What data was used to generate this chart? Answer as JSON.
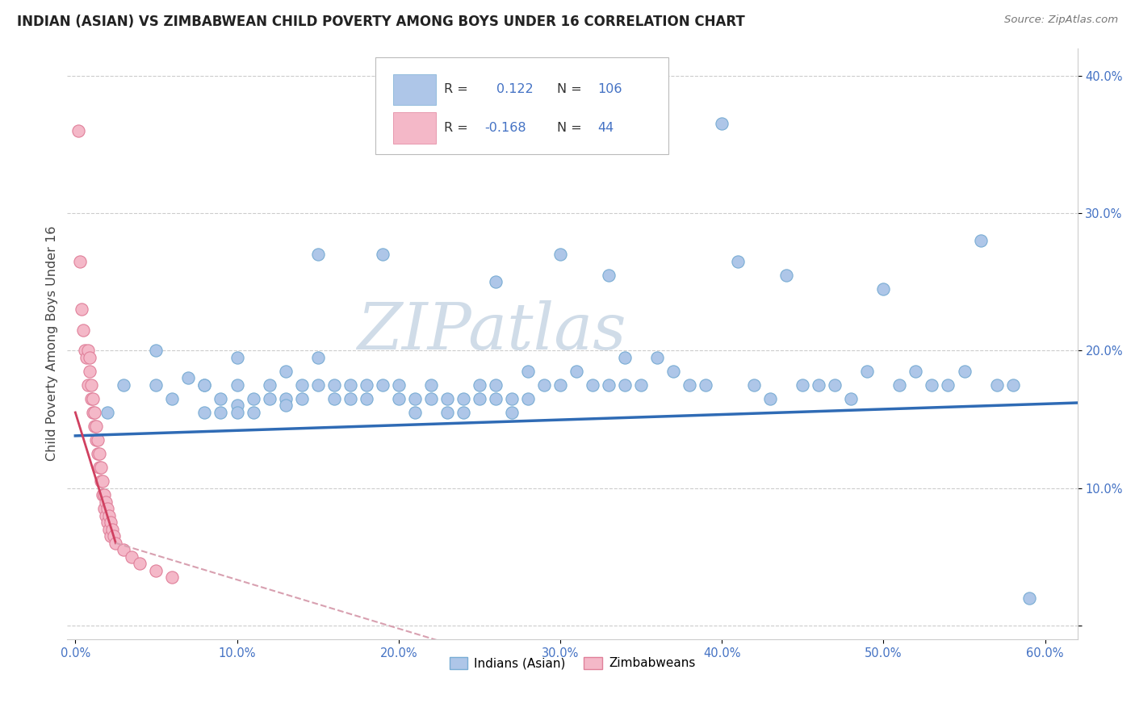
{
  "title": "INDIAN (ASIAN) VS ZIMBABWEAN CHILD POVERTY AMONG BOYS UNDER 16 CORRELATION CHART",
  "source": "Source: ZipAtlas.com",
  "ylabel": "Child Poverty Among Boys Under 16",
  "xlim": [
    -0.005,
    0.62
  ],
  "ylim": [
    -0.01,
    0.42
  ],
  "xticks": [
    0.0,
    0.1,
    0.2,
    0.3,
    0.4,
    0.5,
    0.6
  ],
  "yticks": [
    0.0,
    0.1,
    0.2,
    0.3,
    0.4
  ],
  "xtick_labels": [
    "0.0%",
    "10.0%",
    "20.0%",
    "30.0%",
    "40.0%",
    "50.0%",
    "60.0%"
  ],
  "ytick_labels_right": [
    "",
    "10.0%",
    "20.0%",
    "30.0%",
    "40.0%"
  ],
  "indian_color": "#aec6e8",
  "indian_edge_color": "#7aadd4",
  "zimbabwean_color": "#f4b8c8",
  "zimbabwean_edge_color": "#e0809a",
  "indian_line_color": "#2f6bb5",
  "zimbabwean_line_color": "#d04060",
  "zimbabwean_line_dash_color": "#d8a0b0",
  "watermark_color": "#d0dce8",
  "watermark": "ZIPatlas",
  "tick_color": "#4472c4",
  "grid_color": "#cccccc",
  "indian_scatter": [
    [
      0.02,
      0.155
    ],
    [
      0.03,
      0.175
    ],
    [
      0.05,
      0.175
    ],
    [
      0.05,
      0.2
    ],
    [
      0.06,
      0.165
    ],
    [
      0.07,
      0.18
    ],
    [
      0.08,
      0.175
    ],
    [
      0.08,
      0.155
    ],
    [
      0.08,
      0.175
    ],
    [
      0.09,
      0.165
    ],
    [
      0.09,
      0.155
    ],
    [
      0.1,
      0.195
    ],
    [
      0.1,
      0.175
    ],
    [
      0.1,
      0.16
    ],
    [
      0.1,
      0.155
    ],
    [
      0.11,
      0.165
    ],
    [
      0.11,
      0.155
    ],
    [
      0.12,
      0.175
    ],
    [
      0.12,
      0.165
    ],
    [
      0.13,
      0.185
    ],
    [
      0.13,
      0.165
    ],
    [
      0.13,
      0.16
    ],
    [
      0.14,
      0.175
    ],
    [
      0.14,
      0.165
    ],
    [
      0.15,
      0.27
    ],
    [
      0.15,
      0.195
    ],
    [
      0.15,
      0.175
    ],
    [
      0.16,
      0.175
    ],
    [
      0.16,
      0.165
    ],
    [
      0.17,
      0.175
    ],
    [
      0.17,
      0.165
    ],
    [
      0.18,
      0.175
    ],
    [
      0.18,
      0.165
    ],
    [
      0.19,
      0.27
    ],
    [
      0.19,
      0.175
    ],
    [
      0.2,
      0.165
    ],
    [
      0.2,
      0.175
    ],
    [
      0.21,
      0.165
    ],
    [
      0.21,
      0.155
    ],
    [
      0.22,
      0.175
    ],
    [
      0.22,
      0.165
    ],
    [
      0.23,
      0.165
    ],
    [
      0.23,
      0.155
    ],
    [
      0.24,
      0.165
    ],
    [
      0.24,
      0.155
    ],
    [
      0.25,
      0.175
    ],
    [
      0.25,
      0.165
    ],
    [
      0.26,
      0.25
    ],
    [
      0.26,
      0.175
    ],
    [
      0.26,
      0.165
    ],
    [
      0.27,
      0.165
    ],
    [
      0.27,
      0.155
    ],
    [
      0.28,
      0.185
    ],
    [
      0.28,
      0.165
    ],
    [
      0.29,
      0.175
    ],
    [
      0.3,
      0.27
    ],
    [
      0.3,
      0.175
    ],
    [
      0.31,
      0.185
    ],
    [
      0.32,
      0.175
    ],
    [
      0.33,
      0.255
    ],
    [
      0.33,
      0.175
    ],
    [
      0.34,
      0.195
    ],
    [
      0.34,
      0.175
    ],
    [
      0.35,
      0.175
    ],
    [
      0.36,
      0.195
    ],
    [
      0.37,
      0.185
    ],
    [
      0.38,
      0.175
    ],
    [
      0.39,
      0.175
    ],
    [
      0.4,
      0.365
    ],
    [
      0.41,
      0.265
    ],
    [
      0.42,
      0.175
    ],
    [
      0.43,
      0.165
    ],
    [
      0.44,
      0.255
    ],
    [
      0.45,
      0.175
    ],
    [
      0.46,
      0.175
    ],
    [
      0.47,
      0.175
    ],
    [
      0.48,
      0.165
    ],
    [
      0.49,
      0.185
    ],
    [
      0.5,
      0.245
    ],
    [
      0.51,
      0.175
    ],
    [
      0.52,
      0.185
    ],
    [
      0.53,
      0.175
    ],
    [
      0.54,
      0.175
    ],
    [
      0.55,
      0.185
    ],
    [
      0.56,
      0.28
    ],
    [
      0.57,
      0.175
    ],
    [
      0.58,
      0.175
    ],
    [
      0.59,
      0.02
    ]
  ],
  "zimbabwean_scatter": [
    [
      0.002,
      0.36
    ],
    [
      0.003,
      0.265
    ],
    [
      0.004,
      0.23
    ],
    [
      0.005,
      0.215
    ],
    [
      0.006,
      0.2
    ],
    [
      0.007,
      0.195
    ],
    [
      0.008,
      0.2
    ],
    [
      0.008,
      0.175
    ],
    [
      0.009,
      0.195
    ],
    [
      0.009,
      0.185
    ],
    [
      0.01,
      0.175
    ],
    [
      0.01,
      0.165
    ],
    [
      0.011,
      0.165
    ],
    [
      0.011,
      0.155
    ],
    [
      0.012,
      0.155
    ],
    [
      0.012,
      0.145
    ],
    [
      0.013,
      0.145
    ],
    [
      0.013,
      0.135
    ],
    [
      0.014,
      0.135
    ],
    [
      0.014,
      0.125
    ],
    [
      0.015,
      0.125
    ],
    [
      0.015,
      0.115
    ],
    [
      0.016,
      0.115
    ],
    [
      0.016,
      0.105
    ],
    [
      0.017,
      0.105
    ],
    [
      0.017,
      0.095
    ],
    [
      0.018,
      0.095
    ],
    [
      0.018,
      0.085
    ],
    [
      0.019,
      0.09
    ],
    [
      0.019,
      0.08
    ],
    [
      0.02,
      0.085
    ],
    [
      0.02,
      0.075
    ],
    [
      0.021,
      0.08
    ],
    [
      0.021,
      0.07
    ],
    [
      0.022,
      0.075
    ],
    [
      0.022,
      0.065
    ],
    [
      0.023,
      0.07
    ],
    [
      0.024,
      0.065
    ],
    [
      0.025,
      0.06
    ],
    [
      0.03,
      0.055
    ],
    [
      0.035,
      0.05
    ],
    [
      0.04,
      0.045
    ],
    [
      0.05,
      0.04
    ],
    [
      0.06,
      0.035
    ]
  ],
  "indian_trend": [
    0.0,
    0.62,
    0.138,
    0.162
  ],
  "zimbabwean_trend_solid": [
    0.0,
    0.025,
    0.155,
    0.06
  ],
  "zimbabwean_trend_dash": [
    0.025,
    0.25,
    0.06,
    -0.02
  ]
}
